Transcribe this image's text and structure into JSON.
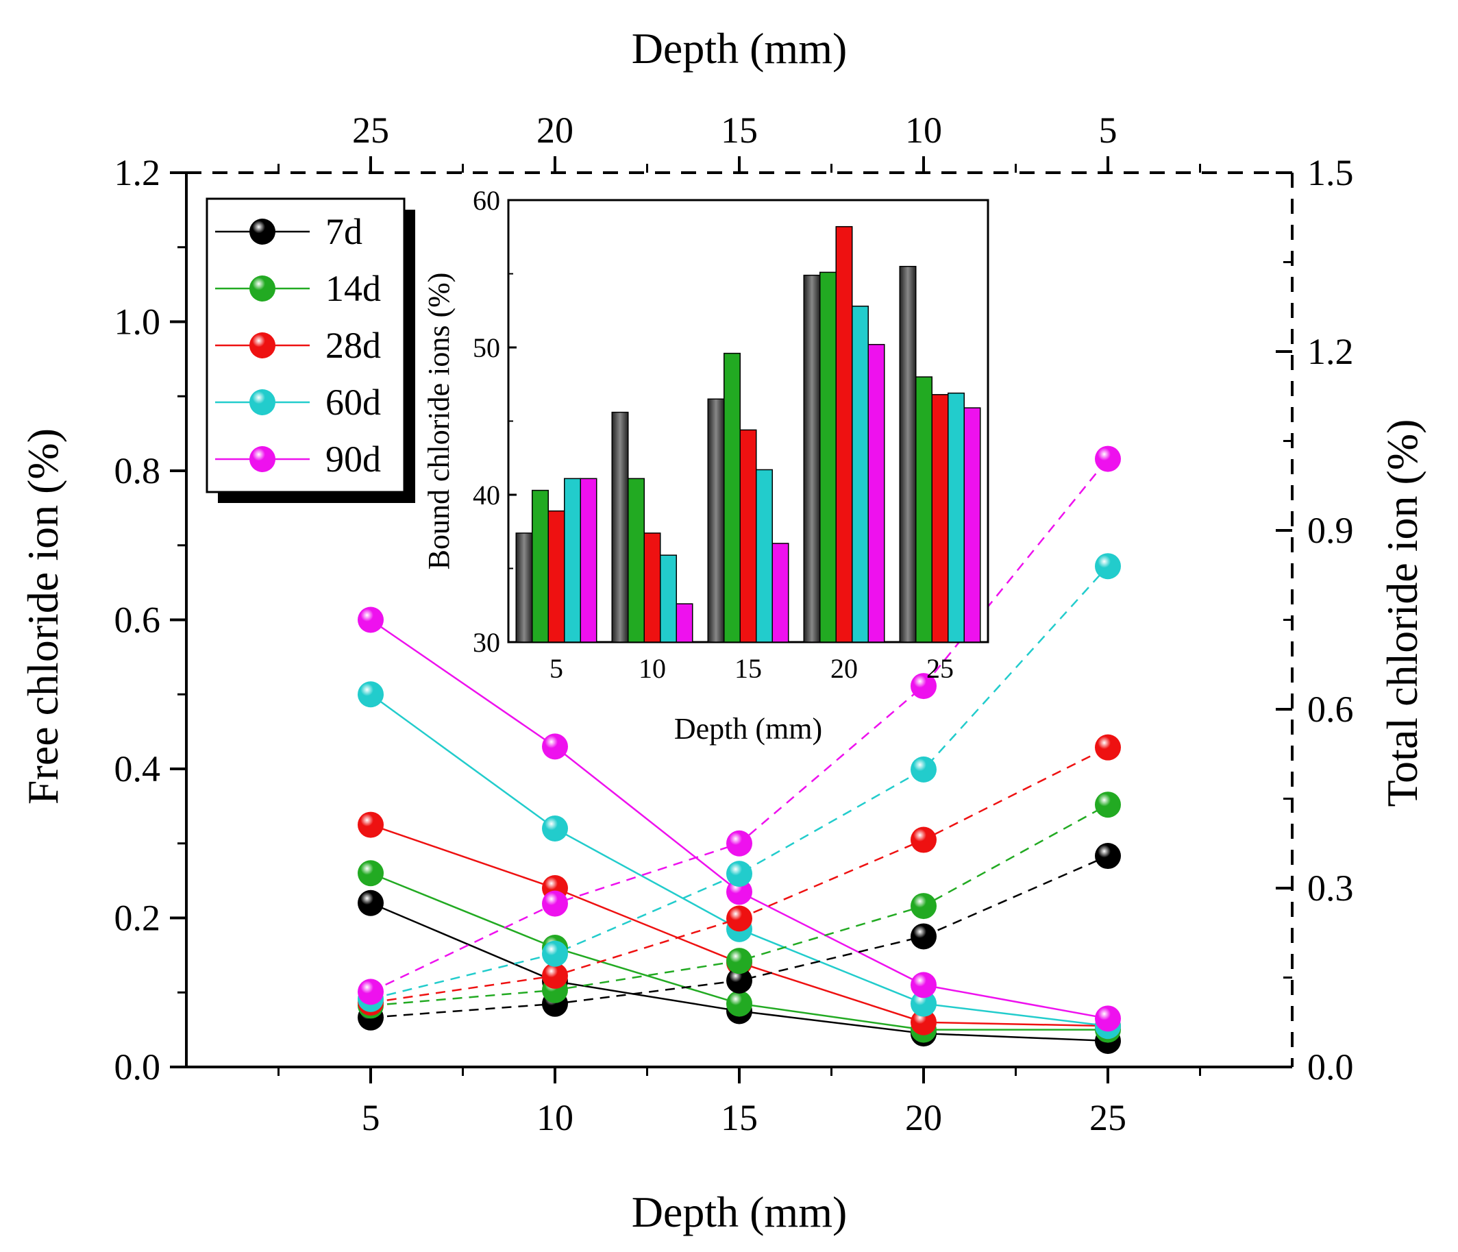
{
  "colors": {
    "7d": "#000000",
    "14d": "#22aa22",
    "28d": "#ee1111",
    "60d": "#22cccc",
    "90d": "#ee11ee"
  },
  "chart_data": [
    {
      "type": "line",
      "xlabel_bottom": "Depth (mm)",
      "xlabel_top": "Depth (mm)",
      "ylabel_left": "Free chloride ion (%)",
      "ylabel_right": "Total chloride ion (%)",
      "x_bottom_ticks": [
        5,
        10,
        15,
        20,
        25
      ],
      "x_top_ticks": [
        25,
        20,
        15,
        10,
        5
      ],
      "y_left_ticks": [
        "0.0",
        "0.2",
        "0.4",
        "0.6",
        "0.8",
        "1.0",
        "1.2"
      ],
      "y_right_ticks": [
        "0.0",
        "0.3",
        "0.6",
        "0.9",
        "1.2",
        "1.5"
      ],
      "xlim": [
        0,
        30
      ],
      "ylim_left": [
        0,
        1.2
      ],
      "ylim_right": [
        0,
        1.5
      ],
      "legend": "top-left",
      "grid": false,
      "free_series": [
        {
          "name": "7d",
          "x": [
            5,
            10,
            15,
            20,
            25
          ],
          "y": [
            0.22,
            0.115,
            0.075,
            0.045,
            0.035
          ]
        },
        {
          "name": "14d",
          "x": [
            5,
            10,
            15,
            20,
            25
          ],
          "y": [
            0.26,
            0.16,
            0.085,
            0.05,
            0.05
          ]
        },
        {
          "name": "28d",
          "x": [
            5,
            10,
            15,
            20,
            25
          ],
          "y": [
            0.325,
            0.24,
            0.14,
            0.06,
            0.055
          ]
        },
        {
          "name": "60d",
          "x": [
            5,
            10,
            15,
            20,
            25
          ],
          "y": [
            0.5,
            0.32,
            0.185,
            0.085,
            0.055
          ]
        },
        {
          "name": "90d",
          "x": [
            5,
            10,
            15,
            20,
            25
          ],
          "y": [
            0.6,
            0.43,
            0.235,
            0.11,
            0.065
          ]
        }
      ],
      "total_series_note_axis": "top x (depth reversed) vs right y",
      "total_series": [
        {
          "name": "7d",
          "depth": [
            25,
            20,
            15,
            10,
            5
          ],
          "y": [
            0.083,
            0.106,
            0.145,
            0.219,
            0.354
          ]
        },
        {
          "name": "14d",
          "depth": [
            25,
            20,
            15,
            10,
            5
          ],
          "y": [
            0.103,
            0.129,
            0.178,
            0.27,
            0.44
          ]
        },
        {
          "name": "28d",
          "depth": [
            25,
            20,
            15,
            10,
            5
          ],
          "y": [
            0.108,
            0.153,
            0.249,
            0.381,
            0.536
          ]
        },
        {
          "name": "60d",
          "depth": [
            25,
            20,
            15,
            10,
            5
          ],
          "y": [
            0.114,
            0.19,
            0.324,
            0.499,
            0.84
          ]
        },
        {
          "name": "90d",
          "depth": [
            25,
            20,
            15,
            10,
            5
          ],
          "y": [
            0.126,
            0.274,
            0.375,
            0.639,
            1.02
          ]
        }
      ]
    },
    {
      "type": "bar",
      "xlabel": "Depth (mm)",
      "ylabel": "Bound chloride ions (%)",
      "categories": [
        "5",
        "10",
        "15",
        "20",
        "25"
      ],
      "y_ticks": [
        "30",
        "40",
        "50",
        "60"
      ],
      "ylim": [
        30,
        60
      ],
      "series": [
        {
          "name": "7d",
          "values": [
            37.4,
            45.6,
            46.5,
            54.9,
            55.5
          ]
        },
        {
          "name": "14d",
          "values": [
            40.3,
            41.1,
            49.6,
            55.1,
            48.0
          ]
        },
        {
          "name": "28d",
          "values": [
            38.9,
            37.4,
            44.4,
            58.2,
            46.8
          ]
        },
        {
          "name": "60d",
          "values": [
            41.1,
            35.9,
            41.7,
            52.8,
            46.9
          ]
        },
        {
          "name": "90d",
          "values": [
            41.1,
            32.6,
            36.7,
            50.2,
            45.9
          ]
        }
      ]
    }
  ]
}
